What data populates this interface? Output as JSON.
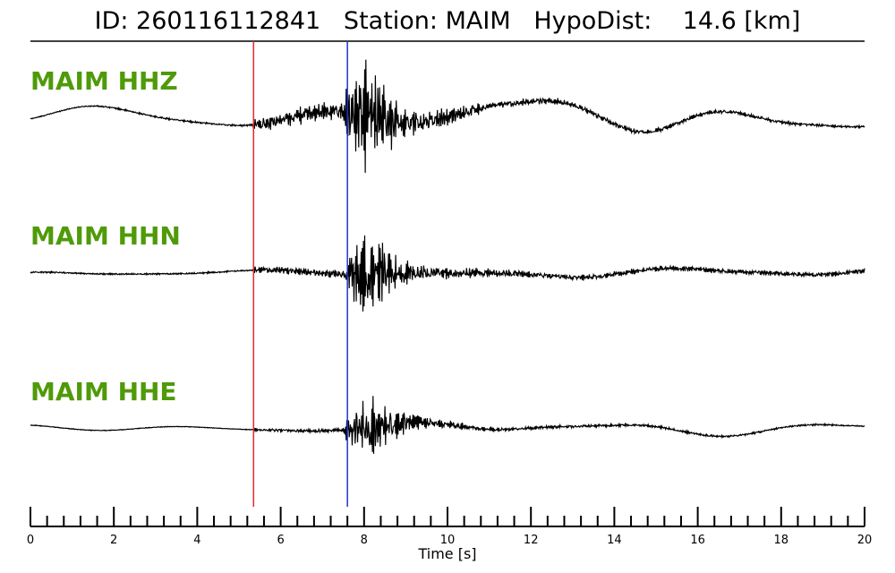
{
  "title": "ID: 260116112841   Station: MAIM   HypoDist:    14.6 [km]",
  "chart_data": {
    "type": "line",
    "xlabel": "Time [s]",
    "xlim": [
      0,
      20
    ],
    "x_ticks": [
      0,
      2,
      4,
      6,
      8,
      10,
      12,
      14,
      16,
      18,
      20
    ],
    "minor_tick_step": 0.4,
    "grid": false,
    "series": [
      {
        "name": "MAIM HHZ",
        "color": "#4f9a09",
        "trace_color": "#000000",
        "envelope": [
          {
            "x": 0,
            "noise": 0.01,
            "drift": 0.15
          },
          {
            "x": 5.3,
            "noise": 0.02,
            "drift": 0.15
          },
          {
            "x": 5.4,
            "noise": 0.14,
            "drift": 0.15
          },
          {
            "x": 7.5,
            "noise": 0.18,
            "drift": 0.15
          },
          {
            "x": 7.6,
            "noise": 0.6,
            "drift": 0.15
          },
          {
            "x": 8.0,
            "noise": 1.0,
            "drift": 0.15
          },
          {
            "x": 9.0,
            "noise": 0.28,
            "drift": 0.15
          },
          {
            "x": 11.0,
            "noise": 0.07,
            "drift": 0.25
          },
          {
            "x": 20,
            "noise": 0.02,
            "drift": 0.25
          }
        ]
      },
      {
        "name": "MAIM HHN",
        "color": "#4f9a09",
        "trace_color": "#000000",
        "envelope": [
          {
            "x": 0,
            "noise": 0.02,
            "drift": 0.05
          },
          {
            "x": 5.3,
            "noise": 0.02,
            "drift": 0.05
          },
          {
            "x": 5.4,
            "noise": 0.09,
            "drift": 0.05
          },
          {
            "x": 7.5,
            "noise": 0.12,
            "drift": 0.05
          },
          {
            "x": 7.7,
            "noise": 0.8,
            "drift": 0.05
          },
          {
            "x": 8.1,
            "noise": 1.0,
            "drift": 0.05
          },
          {
            "x": 9.2,
            "noise": 0.2,
            "drift": 0.05
          },
          {
            "x": 12.0,
            "noise": 0.08,
            "drift": 0.08
          },
          {
            "x": 20,
            "noise": 0.06,
            "drift": 0.12
          }
        ]
      },
      {
        "name": "MAIM HHE",
        "color": "#4f9a09",
        "trace_color": "#000000",
        "envelope": [
          {
            "x": 0,
            "noise": 0.01,
            "drift": 0.08
          },
          {
            "x": 5.3,
            "noise": 0.01,
            "drift": 0.08
          },
          {
            "x": 5.4,
            "noise": 0.05,
            "drift": 0.08
          },
          {
            "x": 7.5,
            "noise": 0.06,
            "drift": 0.08
          },
          {
            "x": 7.6,
            "noise": 0.5,
            "drift": 0.08
          },
          {
            "x": 7.95,
            "noise": 1.0,
            "drift": 0.08
          },
          {
            "x": 9.2,
            "noise": 0.2,
            "drift": 0.12
          },
          {
            "x": 11.0,
            "noise": 0.05,
            "drift": 0.15
          },
          {
            "x": 20,
            "noise": 0.02,
            "drift": 0.15
          }
        ]
      }
    ],
    "picks": [
      {
        "type": "P",
        "t": 5.35,
        "color": "#e8282a"
      },
      {
        "type": "S",
        "t": 7.6,
        "color": "#2233cc"
      }
    ]
  }
}
